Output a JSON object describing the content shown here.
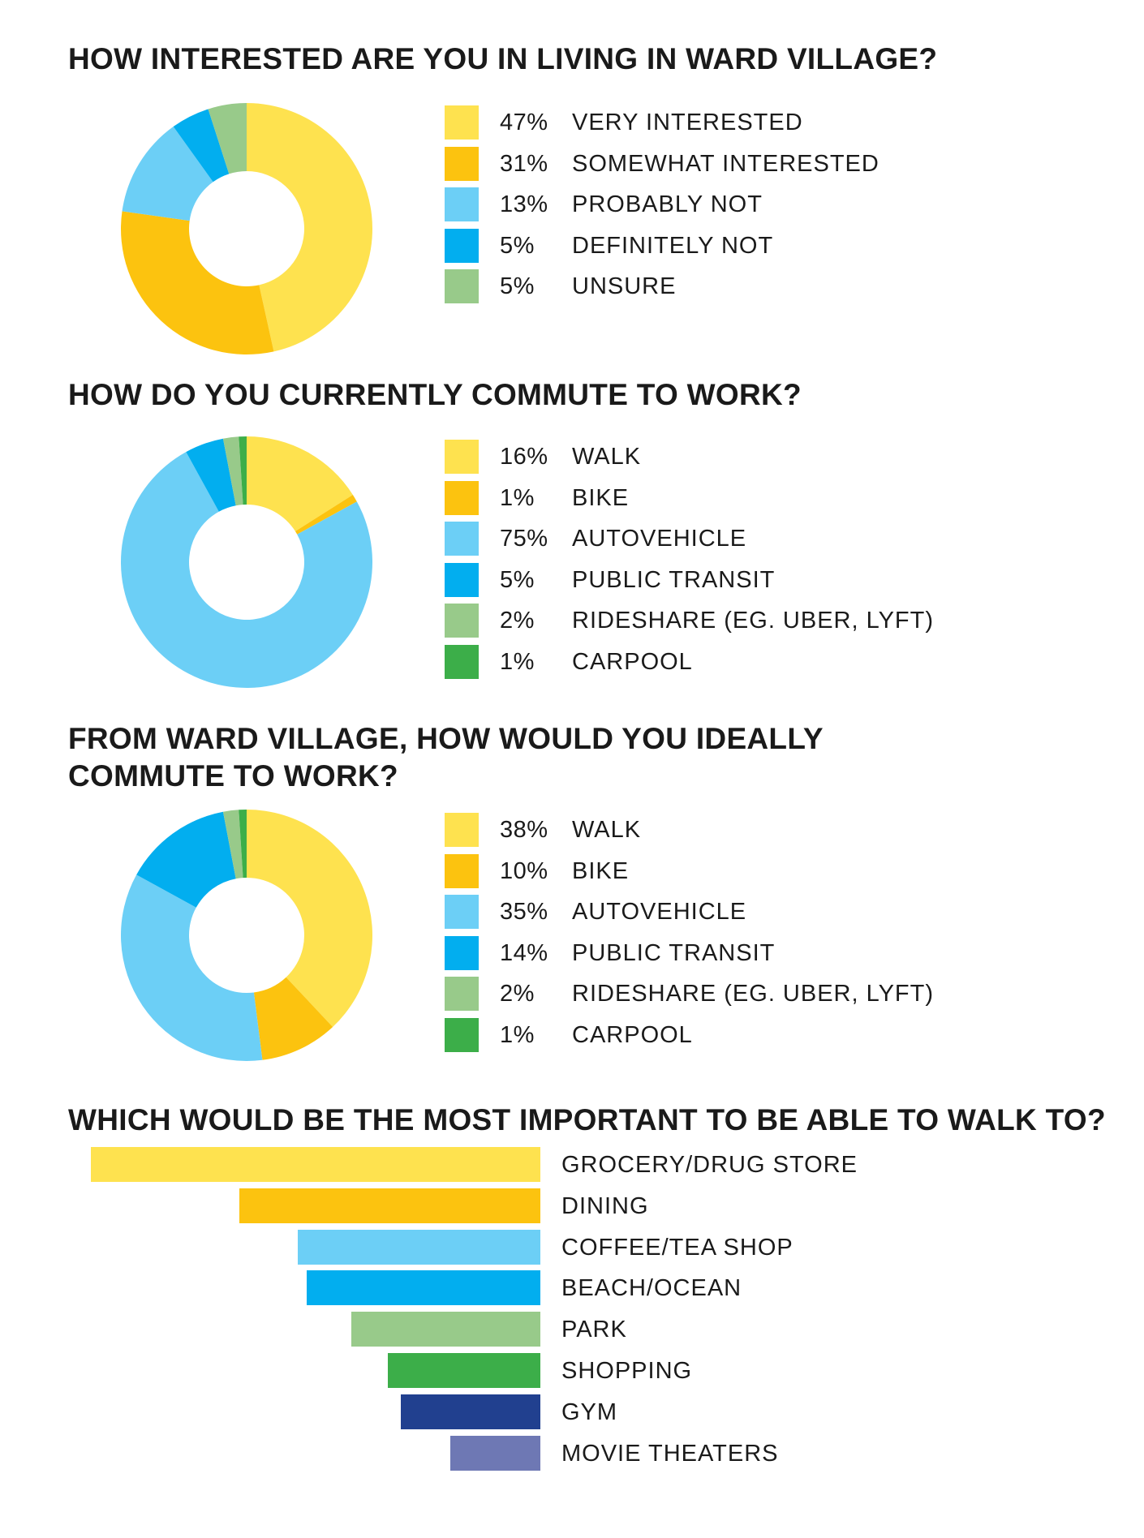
{
  "colors": {
    "yellow": "#FEE24F",
    "gold": "#FCC30F",
    "light_blue": "#6CCFF6",
    "blue": "#02AEEF",
    "light_green": "#98CA8A",
    "green": "#3CAE49",
    "navy": "#21408F",
    "lavender": "#6E78B4"
  },
  "chart_data": [
    {
      "type": "pie",
      "title": "HOW INTERESTED ARE YOU IN LIVING IN WARD VILLAGE?",
      "donut": true,
      "legend_position": "right",
      "slices": [
        {
          "pct_label": "47%",
          "label": "VERY INTERESTED",
          "value": 47,
          "color": "#FEE24F"
        },
        {
          "pct_label": "31%",
          "label": "SOMEWHAT INTERESTED",
          "value": 31,
          "color": "#FCC30F"
        },
        {
          "pct_label": "13%",
          "label": "PROBABLY NOT",
          "value": 13,
          "color": "#6CCFF6"
        },
        {
          "pct_label": "5%",
          "label": "DEFINITELY NOT",
          "value": 5,
          "color": "#02AEEF"
        },
        {
          "pct_label": "5%",
          "label": "UNSURE",
          "value": 5,
          "color": "#98CA8A"
        }
      ]
    },
    {
      "type": "pie",
      "title": "HOW DO YOU CURRENTLY COMMUTE TO WORK?",
      "donut": true,
      "legend_position": "right",
      "slices": [
        {
          "pct_label": "16%",
          "label": "WALK",
          "value": 16,
          "color": "#FEE24F"
        },
        {
          "pct_label": "1%",
          "label": "BIKE",
          "value": 1,
          "color": "#FCC30F"
        },
        {
          "pct_label": "75%",
          "label": "AUTOVEHICLE",
          "value": 75,
          "color": "#6CCFF6"
        },
        {
          "pct_label": "5%",
          "label": "PUBLIC TRANSIT",
          "value": 5,
          "color": "#02AEEF"
        },
        {
          "pct_label": "2%",
          "label": "RIDESHARE (EG. UBER, LYFT)",
          "value": 2,
          "color": "#98CA8A"
        },
        {
          "pct_label": "1%",
          "label": "CARPOOL",
          "value": 1,
          "color": "#3CAE49"
        }
      ]
    },
    {
      "type": "pie",
      "title": "FROM WARD VILLAGE, HOW WOULD YOU IDEALLY COMMUTE TO WORK?",
      "donut": true,
      "legend_position": "right",
      "slices": [
        {
          "pct_label": "38%",
          "label": "WALK",
          "value": 38,
          "color": "#FEE24F"
        },
        {
          "pct_label": "10%",
          "label": "BIKE",
          "value": 10,
          "color": "#FCC30F"
        },
        {
          "pct_label": "35%",
          "label": "AUTOVEHICLE",
          "value": 35,
          "color": "#6CCFF6"
        },
        {
          "pct_label": "14%",
          "label": "PUBLIC TRANSIT",
          "value": 14,
          "color": "#02AEEF"
        },
        {
          "pct_label": "2%",
          "label": "RIDESHARE (EG. UBER, LYFT)",
          "value": 2,
          "color": "#98CA8A"
        },
        {
          "pct_label": "1%",
          "label": "CARPOOL",
          "value": 1,
          "color": "#3CAE49"
        }
      ]
    },
    {
      "type": "bar",
      "orientation": "horizontal",
      "title": "WHICH WOULD BE THE MOST IMPORTANT TO BE ABLE TO WALK TO?",
      "axes_shown": false,
      "value_scale_note_hidden": true,
      "categories": [
        "GROCERY/DRUG STORE",
        "DINING",
        "COFFEE/TEA SHOP",
        "BEACH/OCEAN",
        "PARK",
        "SHOPPING",
        "GYM",
        "MOVIE THEATERS"
      ],
      "values": [
        100,
        67,
        54,
        52,
        42,
        34,
        31,
        20
      ],
      "colors": [
        "#FEE24F",
        "#FCC30F",
        "#6CCFF6",
        "#02AEEF",
        "#98CA8A",
        "#3CAE49",
        "#21408F",
        "#6E78B4"
      ]
    }
  ]
}
